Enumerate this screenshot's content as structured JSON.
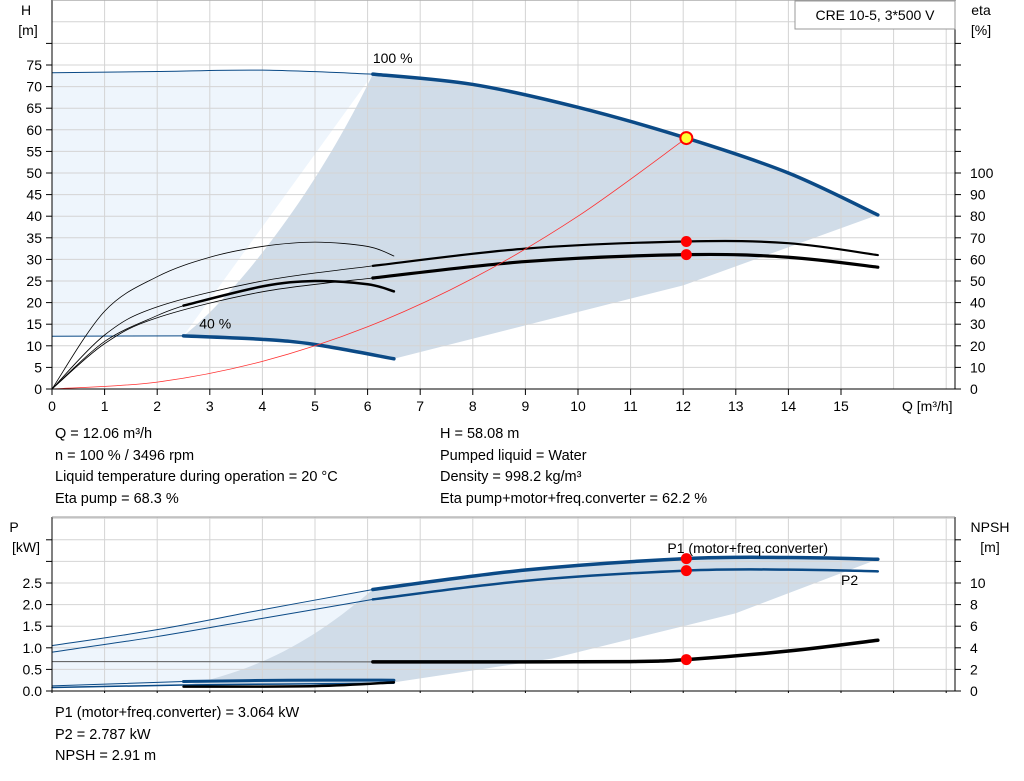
{
  "legend_box": "CRE 10-5, 3*500 V",
  "colors": {
    "curve_blue": "#0b4a86",
    "area_light": "#eef5fc",
    "area_dark": "#d0dce8",
    "system": "#ff3030",
    "point": "#ff0000",
    "duty_fill": "#ffff33"
  },
  "chart_data": [
    {
      "type": "line",
      "title": "",
      "xlabel": "Q [m³/h]",
      "ylabel": "H\n[m]",
      "y2label": "eta\n[%]",
      "xlim": [
        0,
        17
      ],
      "ylim": [
        0,
        90
      ],
      "y2lim": [
        0,
        180
      ],
      "grid": true,
      "xticks": [
        0,
        1,
        2,
        3,
        4,
        5,
        6,
        7,
        8,
        9,
        10,
        11,
        12,
        13,
        14,
        15
      ],
      "yticks": [
        0,
        5,
        10,
        15,
        20,
        25,
        30,
        35,
        40,
        45,
        50,
        55,
        60,
        65,
        70,
        75
      ],
      "y2ticks": [
        0,
        10,
        20,
        30,
        40,
        50,
        60,
        70,
        80,
        90,
        100
      ],
      "curve_labels": [
        {
          "text": "100 %",
          "x": 6.1,
          "y": 75.5
        },
        {
          "text": "40 %",
          "x": 2.8,
          "y": 14
        }
      ],
      "series": [
        {
          "name": "H 100 % (thin)",
          "axis": "H",
          "w": 1,
          "points": [
            [
              0,
              73.2
            ],
            [
              2,
              73.5
            ],
            [
              4,
              73.8
            ],
            [
              6.1,
              72.9
            ]
          ]
        },
        {
          "name": "H 100 %",
          "axis": "H",
          "w": 3.5,
          "points": [
            [
              6.1,
              72.9
            ],
            [
              8,
              70.5
            ],
            [
              10,
              65.2
            ],
            [
              12.06,
              58.08
            ],
            [
              14,
              50
            ],
            [
              15.7,
              40.3
            ]
          ]
        },
        {
          "name": "H 40 % (thin)",
          "axis": "H",
          "w": 1,
          "points": [
            [
              0,
              12.2
            ],
            [
              2.5,
              12.3
            ]
          ]
        },
        {
          "name": "H 40 %",
          "axis": "H",
          "w": 3.5,
          "points": [
            [
              2.5,
              12.3
            ],
            [
              4,
              11.5
            ],
            [
              5,
              10.3
            ],
            [
              6.5,
              7.0
            ]
          ]
        },
        {
          "name": "eta pump (thin)",
          "axis": "eta",
          "w": 0.8,
          "color": "#000",
          "points": [
            [
              0,
              0
            ],
            [
              1,
              25
            ],
            [
              2,
              38
            ],
            [
              4,
              50
            ],
            [
              6.1,
              57
            ]
          ]
        },
        {
          "name": "eta pump",
          "axis": "eta",
          "w": 2.2,
          "color": "#000",
          "points": [
            [
              6.1,
              57
            ],
            [
              9,
              65
            ],
            [
              12.06,
              68.3
            ],
            [
              14,
              67.5
            ],
            [
              15.7,
              62
            ]
          ]
        },
        {
          "name": "eta total (thin)",
          "axis": "eta",
          "w": 0.8,
          "color": "#000",
          "points": [
            [
              0,
              0
            ],
            [
              1,
              21
            ],
            [
              2,
              33
            ],
            [
              4,
              45
            ],
            [
              6.1,
              51.4
            ]
          ]
        },
        {
          "name": "eta total",
          "axis": "eta",
          "w": 3.2,
          "color": "#000",
          "points": [
            [
              6.1,
              51.4
            ],
            [
              9,
              59
            ],
            [
              12.06,
              62.2
            ],
            [
              14,
              61
            ],
            [
              15.7,
              56.4
            ]
          ]
        },
        {
          "name": "eta 40 % pump",
          "axis": "eta",
          "w": 0.8,
          "color": "#000",
          "points": [
            [
              0,
              0
            ],
            [
              1,
              36
            ],
            [
              2,
              52
            ],
            [
              3,
              61
            ],
            [
              4,
              66
            ],
            [
              5,
              68
            ],
            [
              6,
              66
            ],
            [
              6.5,
              61.6
            ]
          ]
        },
        {
          "name": "eta 40 % total (thin)",
          "axis": "eta",
          "w": 0.8,
          "color": "#000",
          "points": [
            [
              0,
              0
            ],
            [
              1,
              22
            ],
            [
              2,
              34
            ],
            [
              2.5,
              38.6
            ]
          ]
        },
        {
          "name": "eta 40 % total",
          "axis": "eta",
          "w": 2.5,
          "color": "#000",
          "points": [
            [
              2.5,
              38.6
            ],
            [
              4,
              47.5
            ],
            [
              5,
              50
            ],
            [
              6,
              48.5
            ],
            [
              6.5,
              45.2
            ]
          ]
        },
        {
          "name": "system curve",
          "axis": "H",
          "w": 0.8,
          "color": "#ff3030",
          "points": [
            [
              0,
              0
            ],
            [
              2,
              1.6
            ],
            [
              4,
              6.4
            ],
            [
              6,
              14.4
            ],
            [
              8,
              25.6
            ],
            [
              10,
              40
            ],
            [
              12.06,
              58.08
            ]
          ]
        }
      ],
      "points": [
        {
          "axis": "H",
          "x": 12.06,
          "y": 58.08,
          "duty": true
        },
        {
          "axis": "eta",
          "x": 12.06,
          "y": 68.3
        },
        {
          "axis": "eta",
          "x": 12.06,
          "y": 62.2
        }
      ]
    },
    {
      "type": "line",
      "title": "",
      "xlabel": "",
      "ylabel": "P\n[kW]",
      "y2label": "NPSH\n[m]",
      "xlim": [
        0,
        17
      ],
      "ylim": [
        0,
        4
      ],
      "y2lim": [
        0,
        16
      ],
      "grid": true,
      "yticks": [
        0,
        0.5,
        1,
        1.5,
        2,
        2.5
      ],
      "ytick_labels": [
        "0.0",
        "0.5",
        "1.0",
        "1.5",
        "2.0",
        "2.5"
      ],
      "y2ticks": [
        0,
        2,
        4,
        6,
        8,
        10
      ],
      "curve_labels": [
        {
          "text": "P1 (motor+freq.converter)",
          "x": 11.7,
          "y": 3.2
        },
        {
          "text": "P2",
          "x": 15,
          "y": 2.45
        }
      ],
      "series": [
        {
          "name": "P1 (thin)",
          "axis": "P",
          "w": 1,
          "points": [
            [
              0,
              1.05
            ],
            [
              2,
              1.42
            ],
            [
              4,
              1.88
            ],
            [
              6.1,
              2.35
            ]
          ]
        },
        {
          "name": "P1",
          "axis": "P",
          "w": 3.5,
          "points": [
            [
              6.1,
              2.35
            ],
            [
              9,
              2.8
            ],
            [
              12.06,
              3.064
            ],
            [
              14,
              3.09
            ],
            [
              15.7,
              3.05
            ]
          ]
        },
        {
          "name": "P2 (thin)",
          "axis": "P",
          "w": 1,
          "points": [
            [
              0,
              0.9
            ],
            [
              2,
              1.26
            ],
            [
              4,
              1.68
            ],
            [
              6.1,
              2.12
            ]
          ]
        },
        {
          "name": "P2",
          "axis": "P",
          "w": 2.5,
          "points": [
            [
              6.1,
              2.12
            ],
            [
              9,
              2.55
            ],
            [
              12.06,
              2.787
            ],
            [
              14,
              2.81
            ],
            [
              15.7,
              2.77
            ]
          ]
        },
        {
          "name": "NPSH (thin)",
          "axis": "NPSH",
          "w": 1,
          "color": "#555",
          "points": [
            [
              0,
              2.72
            ],
            [
              6.1,
              2.7
            ]
          ]
        },
        {
          "name": "NPSH",
          "axis": "NPSH",
          "w": 3.5,
          "color": "#000",
          "points": [
            [
              6.1,
              2.7
            ],
            [
              9,
              2.7
            ],
            [
              11,
              2.72
            ],
            [
              12.06,
              2.91
            ],
            [
              14,
              3.7
            ],
            [
              15.7,
              4.7
            ]
          ]
        },
        {
          "name": "P1 40 % (thin)",
          "axis": "P",
          "w": 1,
          "points": [
            [
              0,
              0.12
            ],
            [
              2.5,
              0.22
            ]
          ]
        },
        {
          "name": "P1 40 %",
          "axis": "P",
          "w": 3,
          "points": [
            [
              2.5,
              0.22
            ],
            [
              4.5,
              0.25
            ],
            [
              6.5,
              0.25
            ]
          ]
        },
        {
          "name": "P2 40 %",
          "axis": "P",
          "w": 1.5,
          "points": [
            [
              0,
              0.08
            ],
            [
              2.5,
              0.14
            ],
            [
              6.5,
              0.18
            ]
          ]
        },
        {
          "name": "NPSH 40 %",
          "axis": "NPSH",
          "w": 2.5,
          "color": "#000",
          "points": [
            [
              2.5,
              0.4
            ],
            [
              5,
              0.45
            ],
            [
              6.5,
              0.8
            ]
          ]
        }
      ],
      "points": [
        {
          "axis": "P",
          "x": 12.06,
          "y": 3.064
        },
        {
          "axis": "P",
          "x": 12.06,
          "y": 2.787
        },
        {
          "axis": "NPSH",
          "x": 12.06,
          "y": 2.91
        }
      ]
    }
  ],
  "readout_top": {
    "col1": [
      "Q = 12.06 m³/h",
      "n = 100 % / 3496 rpm",
      "Liquid temperature during operation = 20 °C",
      "Eta pump = 68.3 %"
    ],
    "col2": [
      "H = 58.08 m",
      "Pumped liquid = Water",
      "Density = 998.2 kg/m³",
      "Eta pump+motor+freq.converter = 62.2 %"
    ]
  },
  "readout_bottom": [
    "P1 (motor+freq.converter) = 3.064 kW",
    "P2 = 2.787 kW",
    "NPSH = 2.91 m"
  ]
}
